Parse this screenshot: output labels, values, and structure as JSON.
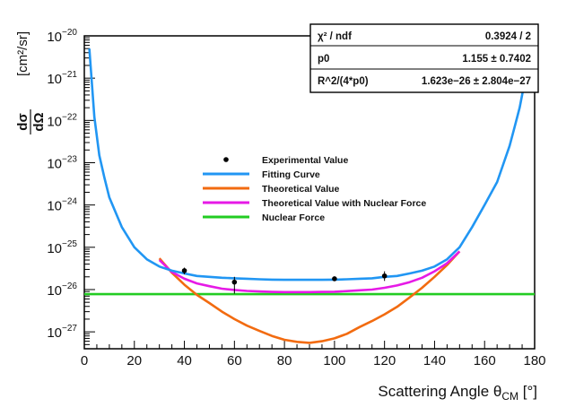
{
  "chart_data": {
    "type": "line",
    "xlabel_main": "Scattering Angle θ",
    "xlabel_sub": "CM",
    "xlabel_unit": "[°]",
    "ylabel_num": "dσ",
    "ylabel_den": "dΩ",
    "ylabel_unit": "[cm²/sr]",
    "xlim": [
      0,
      180
    ],
    "ylim_log10": [
      -27.4,
      -20
    ],
    "log_y": true,
    "grid": false,
    "x_ticks": [
      "0",
      "20",
      "40",
      "60",
      "80",
      "100",
      "120",
      "140",
      "160",
      "180"
    ],
    "y_ticks": [
      {
        "exp": -20,
        "base": "10",
        "sup": "−20"
      },
      {
        "exp": -21,
        "base": "10",
        "sup": "−21"
      },
      {
        "exp": -22,
        "base": "10",
        "sup": "−22"
      },
      {
        "exp": -23,
        "base": "10",
        "sup": "−23"
      },
      {
        "exp": -24,
        "base": "10",
        "sup": "−24"
      },
      {
        "exp": -25,
        "base": "10",
        "sup": "−25"
      },
      {
        "exp": -26,
        "base": "10",
        "sup": "−26"
      },
      {
        "exp": -27,
        "base": "10",
        "sup": "−27"
      }
    ],
    "stats_box": {
      "rows": [
        {
          "label": "χ² / ndf",
          "value": "0.3924 / 2"
        },
        {
          "label": "p0",
          "value": "1.155 ± 0.7402"
        },
        {
          "label": "R^2/(4*p0)",
          "value": "1.623e−26 ± 2.804e−27"
        }
      ]
    },
    "legend": {
      "position": "center-left",
      "entries": [
        {
          "label": "Experimental Value",
          "color": "#000000",
          "kind": "marker"
        },
        {
          "label": "Fitting Curve",
          "color": "#2196f3",
          "kind": "line"
        },
        {
          "label": "Theoretical Value",
          "color": "#f26b10",
          "kind": "line"
        },
        {
          "label": "Theoretical Value with Nuclear Force",
          "color": "#e61ae6",
          "kind": "line"
        },
        {
          "label": "Nuclear Force",
          "color": "#22cc22",
          "kind": "line"
        }
      ]
    },
    "series": [
      {
        "key": "fit",
        "color": "#2196f3",
        "x": [
          2,
          4,
          6,
          8,
          10,
          15,
          20,
          25,
          30,
          35,
          40,
          45,
          50,
          55,
          60,
          65,
          70,
          75,
          80,
          85,
          90,
          95,
          100,
          105,
          110,
          115,
          120,
          125,
          130,
          135,
          140,
          145,
          150,
          155,
          160,
          165,
          170,
          172,
          174,
          176,
          178
        ],
        "y": [
          5e-21,
          1.2e-22,
          1.5e-23,
          4.5e-24,
          1.5e-24,
          3e-25,
          1e-25,
          5.2e-26,
          3.5e-26,
          2.8e-26,
          2.4e-26,
          2.1e-26,
          2e-26,
          1.9e-26,
          1.85e-26,
          1.8e-26,
          1.75e-26,
          1.72e-26,
          1.7e-26,
          1.7e-26,
          1.7e-26,
          1.7e-26,
          1.72e-26,
          1.75e-26,
          1.8e-26,
          1.85e-26,
          2e-26,
          2.1e-26,
          2.4e-26,
          2.8e-26,
          3.5e-26,
          5.2e-26,
          1e-25,
          3e-25,
          1e-24,
          3.5e-24,
          2.5e-23,
          7e-23,
          2e-22,
          8e-22,
          2e-21
        ]
      },
      {
        "key": "theory",
        "color": "#f26b10",
        "x": [
          30,
          35,
          40,
          45,
          50,
          55,
          60,
          65,
          70,
          75,
          80,
          85,
          90,
          95,
          100,
          105,
          110,
          115,
          120,
          125,
          130,
          135,
          140,
          145,
          150
        ],
        "y": [
          5.5e-26,
          2.5e-26,
          1.3e-26,
          7.5e-27,
          4.8e-27,
          3e-27,
          2e-27,
          1.4e-27,
          1.05e-27,
          8e-28,
          6.5e-28,
          5.8e-28,
          5.5e-28,
          6e-28,
          7e-28,
          9e-28,
          1.3e-27,
          1.8e-27,
          2.6e-27,
          3.9e-27,
          6.5e-27,
          1.1e-26,
          2e-26,
          3.8e-26,
          8e-26
        ]
      },
      {
        "key": "theory_nuclear",
        "color": "#e61ae6",
        "x": [
          30,
          35,
          40,
          45,
          50,
          55,
          60,
          65,
          70,
          75,
          80,
          85,
          90,
          95,
          100,
          105,
          110,
          115,
          120,
          125,
          130,
          135,
          140,
          145,
          150
        ],
        "y": [
          5e-26,
          2.6e-26,
          1.8e-26,
          1.4e-26,
          1.2e-26,
          1.05e-26,
          9.8e-27,
          9.3e-27,
          9e-27,
          8.8e-27,
          8.7e-27,
          8.7e-27,
          8.7e-27,
          8.8e-27,
          8.9e-27,
          9.2e-27,
          9.6e-27,
          1e-26,
          1.1e-26,
          1.25e-26,
          1.5e-26,
          1.9e-26,
          2.7e-26,
          4.2e-26,
          8e-26
        ]
      },
      {
        "key": "nuclear",
        "color": "#22cc22",
        "x": [
          0,
          180
        ],
        "y": [
          7.8e-27,
          7.8e-27
        ]
      }
    ],
    "experimental": [
      {
        "x": 40,
        "y": 2.8e-26,
        "err_lo": 2.3e-26,
        "err_hi": 3.3e-26
      },
      {
        "x": 60,
        "y": 1.5e-26,
        "err_lo": 8e-27,
        "err_hi": 2e-26
      },
      {
        "x": 100,
        "y": 1.8e-26,
        "err_lo": 1.6e-26,
        "err_hi": 2e-26
      },
      {
        "x": 120,
        "y": 2.1e-26,
        "err_lo": 1.6e-26,
        "err_hi": 2.7e-26
      }
    ]
  }
}
